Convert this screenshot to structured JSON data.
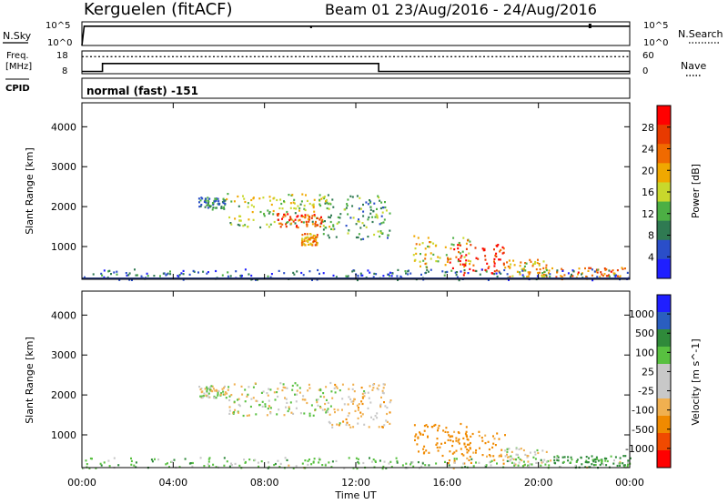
{
  "header": {
    "station": "Kerguelen (fitACF)",
    "beam_date": "Beam 01 23/Aug/2016 - 24/Aug/2016"
  },
  "top_panels": {
    "nsky_label": "N.Sky",
    "nsky_ticks": [
      "10^5",
      "10^0"
    ],
    "nsky_right_ticks": [
      "10^5",
      "10^0"
    ],
    "nsearch_label": "N.Search",
    "freq_label_1": "Freq.",
    "freq_label_2": "[MHz]",
    "freq_ticks": [
      "18",
      "8"
    ],
    "nave_ticks": [
      "60",
      "0"
    ],
    "nave_label": "Nave",
    "cpid_label": "CPID",
    "cpid_text": "normal (fast) -151"
  },
  "axes": {
    "x_ticks": [
      "00:00",
      "04:00",
      "08:00",
      "12:00",
      "16:00",
      "20:00",
      "00:00"
    ],
    "x_label": "Time UT",
    "y_label": "Slant Range [km]",
    "y_ticks": [
      "4000",
      "3000",
      "2000",
      "1000"
    ]
  },
  "colors": {
    "power": [
      "#1f1fff",
      "#2a4ec9",
      "#2f7a52",
      "#4caf44",
      "#c8d82c",
      "#f0a800",
      "#f06a00",
      "#e83a00",
      "#ff0000"
    ],
    "velocity": [
      "#ff0000",
      "#f04a00",
      "#f08a00",
      "#f0b050",
      "#c8c8c8",
      "#c8c8c8",
      "#58c040",
      "#2f8a3a",
      "#2a5ec0",
      "#1f1fff"
    ]
  },
  "chart_data": [
    {
      "type": "line",
      "title": "Kerguelen (fitACF)",
      "subtitle": "Beam 01 23/Aug/2016 - 24/Aug/2016",
      "x_range_hours": [
        0,
        24
      ],
      "series": [
        {
          "name": "N.Sky",
          "x": [
            0,
            0.1,
            24
          ],
          "y": [
            1,
            30000,
            30000
          ]
        },
        {
          "name": "Freq.",
          "x": [
            0,
            0.9,
            0.9,
            13,
            13,
            24
          ],
          "y": [
            9,
            9,
            12.5,
            12.5,
            9,
            9
          ]
        },
        {
          "name": "Nave",
          "x": [
            0,
            24
          ],
          "y": [
            45,
            45
          ]
        }
      ]
    },
    {
      "type": "heatmap",
      "ylabel": "Slant Range [km]",
      "xlabel": "Time UT",
      "ylim": [
        180,
        4600
      ],
      "colorbar_label": "Power [dB]",
      "colorbar_ticks": [
        "28",
        "24",
        "20",
        "16",
        "12",
        "8",
        "4"
      ],
      "scatter_regions": [
        {
          "time_start": 5.1,
          "time_end": 6.3,
          "range_start": 1950,
          "range_end": 2250,
          "value": 8
        },
        {
          "time_start": 6.3,
          "time_end": 11.0,
          "range_start": 1500,
          "range_end": 2350,
          "value": 14
        },
        {
          "time_start": 8.5,
          "time_end": 10.5,
          "range_start": 1500,
          "range_end": 1850,
          "value": 24
        },
        {
          "time_start": 9.6,
          "time_end": 10.3,
          "range_start": 1050,
          "range_end": 1350,
          "value": 20
        },
        {
          "time_start": 10.5,
          "time_end": 13.5,
          "range_start": 1200,
          "range_end": 2300,
          "value": 10
        },
        {
          "time_start": 14.5,
          "time_end": 17.0,
          "range_start": 500,
          "range_end": 1300,
          "value": 16
        },
        {
          "time_start": 16.0,
          "time_end": 18.5,
          "range_start": 300,
          "range_end": 1100,
          "value": 26
        },
        {
          "time_start": 18.5,
          "time_end": 20.5,
          "range_start": 250,
          "range_end": 700,
          "value": 18
        },
        {
          "time_start": 20.5,
          "time_end": 23.8,
          "range_start": 200,
          "range_end": 500,
          "value": 22
        },
        {
          "time_start": 0.0,
          "time_end": 24.0,
          "range_start": 180,
          "range_end": 450,
          "value": 6
        }
      ]
    },
    {
      "type": "heatmap",
      "ylabel": "Slant Range [km]",
      "xlabel": "Time UT",
      "ylim": [
        180,
        4600
      ],
      "colorbar_label": "Velocity [m s^-1]",
      "colorbar_ticks": [
        "1000",
        "500",
        "100",
        "25",
        "-25",
        "-100",
        "-500",
        "-1000"
      ],
      "scatter_regions": [
        {
          "time_start": 5.1,
          "time_end": 6.3,
          "range_start": 1950,
          "range_end": 2250,
          "value": 0
        },
        {
          "time_start": 6.3,
          "time_end": 11.0,
          "range_start": 1500,
          "range_end": 2350,
          "value": 0
        },
        {
          "time_start": 10.5,
          "time_end": 13.5,
          "range_start": 1200,
          "range_end": 2300,
          "value": -50
        },
        {
          "time_start": 14.5,
          "time_end": 17.0,
          "range_start": 500,
          "range_end": 1300,
          "value": -300
        },
        {
          "time_start": 16.0,
          "time_end": 18.5,
          "range_start": 300,
          "range_end": 1100,
          "value": -150
        },
        {
          "time_start": 18.5,
          "time_end": 20.5,
          "range_start": 250,
          "range_end": 700,
          "value": 0
        },
        {
          "time_start": 20.5,
          "time_end": 23.8,
          "range_start": 200,
          "range_end": 500,
          "value": 150
        },
        {
          "time_start": 0.0,
          "time_end": 24.0,
          "range_start": 180,
          "range_end": 450,
          "value": 50
        }
      ]
    }
  ]
}
